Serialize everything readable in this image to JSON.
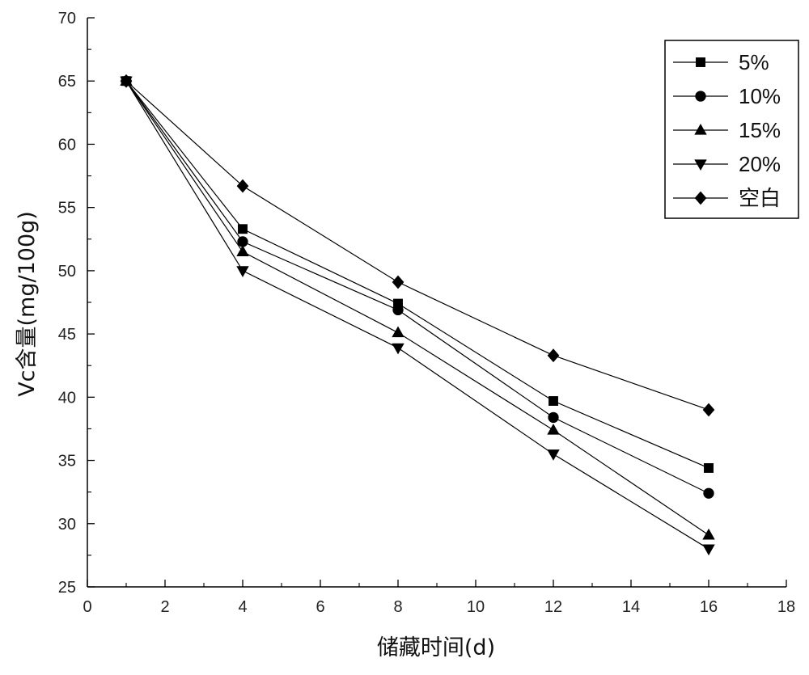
{
  "chart_data": {
    "type": "line",
    "xlabel": "储藏时间(d)",
    "ylabel": "Vc含量(mg/100g)",
    "xlim": [
      0,
      18
    ],
    "ylim": [
      25,
      70
    ],
    "x_ticks": [
      0,
      2,
      4,
      6,
      8,
      10,
      12,
      14,
      16,
      18
    ],
    "y_ticks": [
      25,
      30,
      35,
      40,
      45,
      50,
      55,
      60,
      65,
      70
    ],
    "grid": false,
    "legend_position": "top-right",
    "x": [
      1,
      4,
      8,
      12,
      16
    ],
    "series": [
      {
        "name": "5%",
        "marker": "square",
        "values": [
          65.0,
          53.3,
          47.4,
          39.7,
          34.4
        ]
      },
      {
        "name": "10%",
        "marker": "circle",
        "values": [
          65.0,
          52.3,
          46.9,
          38.4,
          32.4
        ]
      },
      {
        "name": "15%",
        "marker": "triangle-up",
        "values": [
          65.0,
          51.5,
          45.1,
          37.4,
          29.1
        ]
      },
      {
        "name": "20%",
        "marker": "triangle-down",
        "values": [
          65.0,
          50.0,
          43.9,
          35.5,
          28.0
        ]
      },
      {
        "name": "空白",
        "marker": "diamond",
        "values": [
          65.0,
          56.7,
          49.1,
          43.3,
          39.0
        ]
      }
    ],
    "colors": {
      "line": "#000000",
      "marker": "#000000",
      "axis": "#000000"
    }
  }
}
